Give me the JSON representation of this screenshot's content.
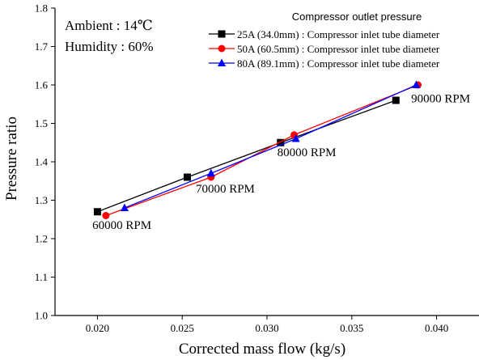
{
  "chart_data": {
    "type": "line",
    "xlabel": "Corrected mass flow (kg/s)",
    "ylabel": "Pressure ratio",
    "xlim": [
      0.0175,
      0.0425
    ],
    "ylim": [
      1.0,
      1.8
    ],
    "xticks": [
      0.02,
      0.025,
      0.03,
      0.035,
      0.04
    ],
    "xtick_labels": [
      "0.020",
      "0.025",
      "0.030",
      "0.035",
      "0.040"
    ],
    "yticks": [
      1.0,
      1.1,
      1.2,
      1.3,
      1.4,
      1.5,
      1.6,
      1.7,
      1.8
    ],
    "ytick_labels": [
      "1.0",
      "1.1",
      "1.2",
      "1.3",
      "1.4",
      "1.5",
      "1.6",
      "1.7",
      "1.8"
    ],
    "grid": false,
    "legend_title": "Compressor outlet pressure",
    "legend_position": "top-right",
    "conditions": [
      "Ambient : 14℃",
      "Humidity : 60%"
    ],
    "series": [
      {
        "name": "25A (34.0mm) : Compressor inlet tube diameter",
        "color": "#000000",
        "marker": "square",
        "x": [
          0.02,
          0.0253,
          0.0308,
          0.0376
        ],
        "y": [
          1.27,
          1.36,
          1.45,
          1.56
        ]
      },
      {
        "name": "50A (60.5mm) : Compressor inlet tube diameter",
        "color": "#ff0000",
        "marker": "circle",
        "x": [
          0.0205,
          0.0267,
          0.0316,
          0.0389
        ],
        "y": [
          1.26,
          1.36,
          1.47,
          1.6
        ]
      },
      {
        "name": "80A (89.1mm) : Compressor inlet tube diameter",
        "color": "#0000ff",
        "marker": "triangle",
        "x": [
          0.0216,
          0.0267,
          0.0317,
          0.0388
        ],
        "y": [
          1.28,
          1.37,
          1.46,
          1.6
        ]
      }
    ],
    "annotations": [
      {
        "text": "60000 RPM",
        "x": 0.0197,
        "y": 1.225
      },
      {
        "text": "70000 RPM",
        "x": 0.0258,
        "y": 1.32
      },
      {
        "text": "80000 RPM",
        "x": 0.0306,
        "y": 1.415
      },
      {
        "text": "90000 RPM",
        "x": 0.0385,
        "y": 1.555
      }
    ]
  }
}
